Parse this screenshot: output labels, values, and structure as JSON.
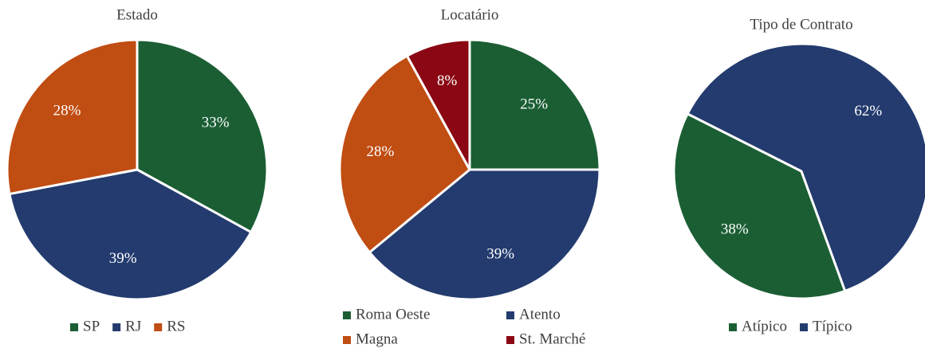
{
  "chart_data": [
    {
      "type": "pie",
      "title": "Estado",
      "categories": [
        "SP",
        "RJ",
        "RS"
      ],
      "values": [
        33,
        39,
        28
      ],
      "value_labels": [
        "33%",
        "39%",
        "28%"
      ],
      "colors": [
        "#1b5e34",
        "#233b6e",
        "#c04d12"
      ],
      "legend": "bottom"
    },
    {
      "type": "pie",
      "title": "Locatário",
      "categories": [
        "Roma Oeste",
        "Atento",
        "Magna",
        "St. Marché"
      ],
      "values": [
        25,
        39,
        28,
        8
      ],
      "value_labels": [
        "25%",
        "39%",
        "28%",
        "8%"
      ],
      "colors": [
        "#1b5e34",
        "#233b6e",
        "#c04d12",
        "#8a0713"
      ],
      "legend": "bottom"
    },
    {
      "type": "pie",
      "title": "Tipo de Contrato",
      "categories": [
        "Atípico",
        "Típico"
      ],
      "values": [
        38,
        62
      ],
      "value_labels": [
        "38%",
        "62%"
      ],
      "colors": [
        "#1b5e34",
        "#233b6e"
      ],
      "legend": "bottom"
    }
  ]
}
